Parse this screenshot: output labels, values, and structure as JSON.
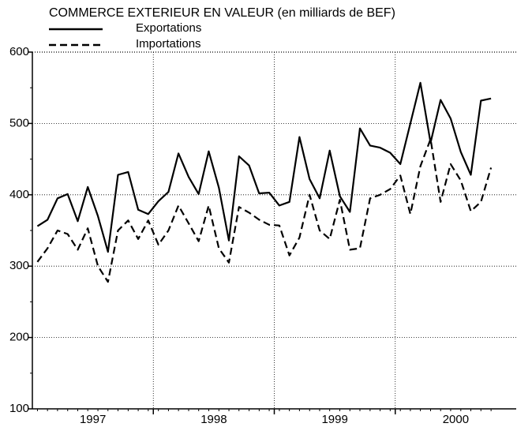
{
  "chart_data": {
    "type": "line",
    "title": "COMMERCE EXTERIEUR EN VALEUR (en milliards de BEF)",
    "x": [
      1996.542,
      1996.625,
      1996.708,
      1996.792,
      1996.875,
      1996.958,
      1997.042,
      1997.125,
      1997.208,
      1997.292,
      1997.375,
      1997.458,
      1997.542,
      1997.625,
      1997.708,
      1997.792,
      1997.875,
      1997.958,
      1998.042,
      1998.125,
      1998.208,
      1998.292,
      1998.375,
      1998.458,
      1998.542,
      1998.625,
      1998.708,
      1998.792,
      1998.875,
      1998.958,
      1999.042,
      1999.125,
      1999.208,
      1999.292,
      1999.375,
      1999.458,
      1999.542,
      1999.625,
      1999.708,
      1999.792,
      1999.875,
      1999.958,
      2000.042,
      2000.125,
      2000.208,
      2000.292
    ],
    "series": [
      {
        "name": "Exportations",
        "color": "#000000",
        "dash": "solid",
        "values": [
          356,
          365,
          395,
          401,
          363,
          411,
          370,
          320,
          428,
          432,
          379,
          373,
          391,
          404,
          458,
          425,
          401,
          461,
          410,
          336,
          454,
          441,
          402,
          403,
          385,
          390,
          481,
          422,
          395,
          462,
          398,
          376,
          493,
          469,
          466,
          459,
          443,
          500,
          557,
          473,
          533,
          507,
          460,
          428,
          532,
          535
        ]
      },
      {
        "name": "Importations",
        "color": "#000000",
        "dash": "dashed",
        "values": [
          306,
          325,
          350,
          345,
          323,
          353,
          300,
          278,
          350,
          364,
          338,
          364,
          330,
          350,
          385,
          360,
          335,
          385,
          325,
          305,
          383,
          375,
          365,
          358,
          357,
          315,
          340,
          400,
          350,
          338,
          393,
          323,
          325,
          395,
          400,
          408,
          427,
          373,
          440,
          478,
          390,
          443,
          420,
          377,
          390,
          438
        ]
      }
    ],
    "xlim": [
      1996.5,
      2000.5
    ],
    "xticks": [
      1997,
      1998,
      1999,
      2000
    ],
    "ylim": [
      100,
      600
    ],
    "yticks": [
      100,
      200,
      300,
      400,
      500,
      600
    ],
    "grid": true,
    "legend": "top-left"
  }
}
